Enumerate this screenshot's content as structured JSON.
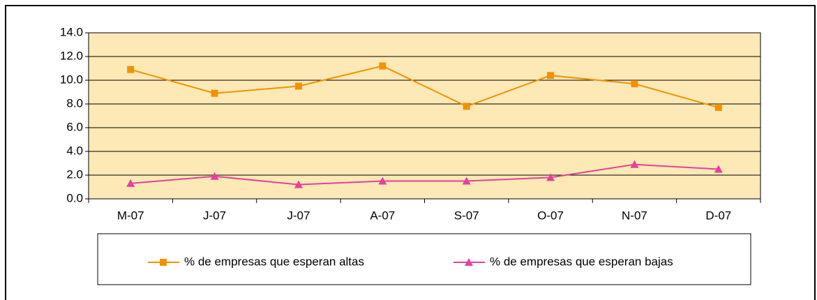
{
  "chart_data": {
    "type": "line",
    "categories": [
      "M-07",
      "J-07",
      "J-07",
      "A-07",
      "S-07",
      "O-07",
      "N-07",
      "D-07"
    ],
    "series": [
      {
        "name": "% de empresas que esperan altas",
        "color": "#f39200",
        "marker": "square",
        "values": [
          10.9,
          8.9,
          9.5,
          11.2,
          7.8,
          10.4,
          9.7,
          7.7
        ]
      },
      {
        "name": "% de empresas que esperan bajas",
        "color": "#e6409b",
        "marker": "triangle",
        "values": [
          1.3,
          1.9,
          1.2,
          1.5,
          1.5,
          1.8,
          2.9,
          2.5
        ]
      }
    ],
    "ylim": [
      0,
      14
    ],
    "yticks": [
      {
        "value": 0,
        "label": "0.0"
      },
      {
        "value": 2,
        "label": "2.0"
      },
      {
        "value": 4,
        "label": "4.0"
      },
      {
        "value": 6,
        "label": "6.0"
      },
      {
        "value": 8,
        "label": "8.0"
      },
      {
        "value": 10,
        "label": "10.0"
      },
      {
        "value": 12,
        "label": "12.0"
      },
      {
        "value": 14,
        "label": "14.0"
      }
    ],
    "grid": true,
    "legend": "bottom",
    "plot_background": "#fce9b6"
  }
}
